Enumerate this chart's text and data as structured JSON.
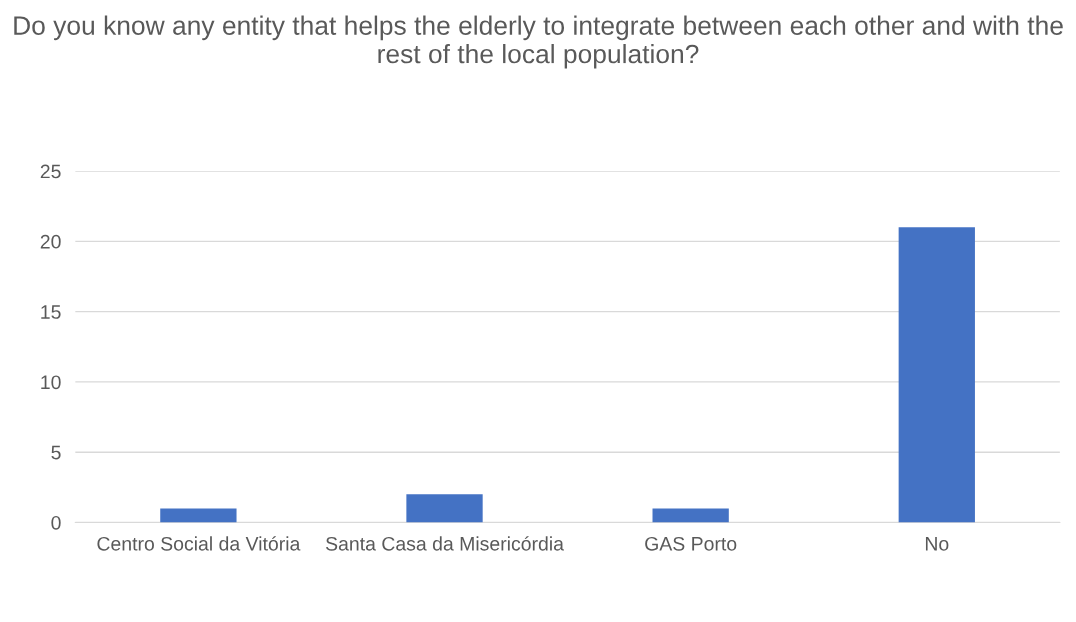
{
  "chart_data": {
    "type": "bar",
    "title": "Do you know any entity that helps the elderly to integrate between each other and with the rest of the local population?",
    "categories": [
      "Centro Social da Vitória",
      "Santa Casa da Misericórdia",
      "GAS Porto",
      "No"
    ],
    "values": [
      1,
      2,
      1,
      21
    ],
    "color": "#4472c4",
    "ylim": [
      0,
      25
    ],
    "yticks": [
      0,
      5,
      10,
      15,
      20,
      25
    ],
    "grid": "y"
  }
}
